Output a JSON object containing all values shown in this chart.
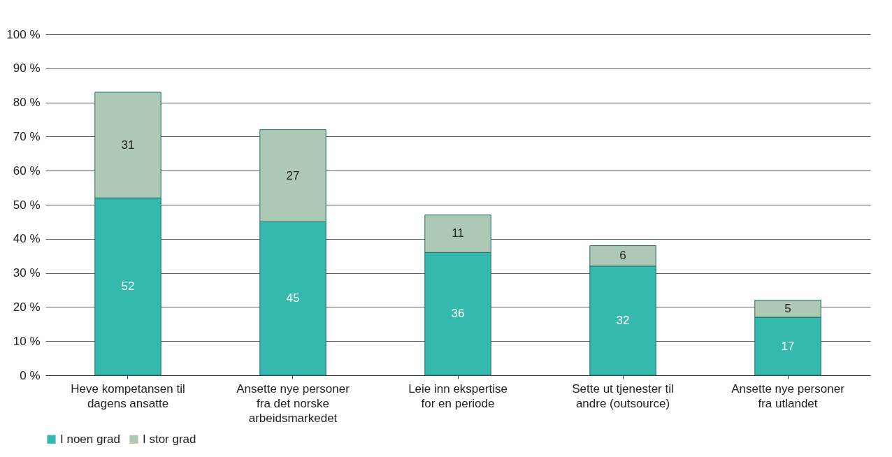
{
  "chart_data": {
    "type": "bar",
    "stacked": true,
    "categories": [
      "Heve kompetansen til dagens ansatte",
      "Ansette nye personer fra det norske arbeidsmarkedet",
      "Leie inn ekspertise for en periode",
      "Sette ut tjenester til andre (outsource)",
      "Ansette nye personer fra utlandet"
    ],
    "series": [
      {
        "name": "I noen grad",
        "color": "#35b8ad",
        "values": [
          52,
          45,
          36,
          32,
          17
        ]
      },
      {
        "name": "I stor grad",
        "color": "#adc9b6",
        "values": [
          31,
          27,
          11,
          6,
          5
        ]
      }
    ],
    "ylim": [
      0,
      100
    ],
    "yticks": [
      {
        "value": 0,
        "label": "0 %"
      },
      {
        "value": 10,
        "label": "10 %"
      },
      {
        "value": 20,
        "label": "20 %"
      },
      {
        "value": 30,
        "label": "30 %"
      },
      {
        "value": 40,
        "label": "40 %"
      },
      {
        "value": 50,
        "label": "50 %"
      },
      {
        "value": 60,
        "label": "60 %"
      },
      {
        "value": 70,
        "label": "70 %"
      },
      {
        "value": 80,
        "label": "80 %"
      },
      {
        "value": 90,
        "label": "90 %"
      },
      {
        "value": 100,
        "label": "100 %"
      }
    ],
    "grid": "y",
    "legend": "bottom",
    "data_labels": true
  }
}
